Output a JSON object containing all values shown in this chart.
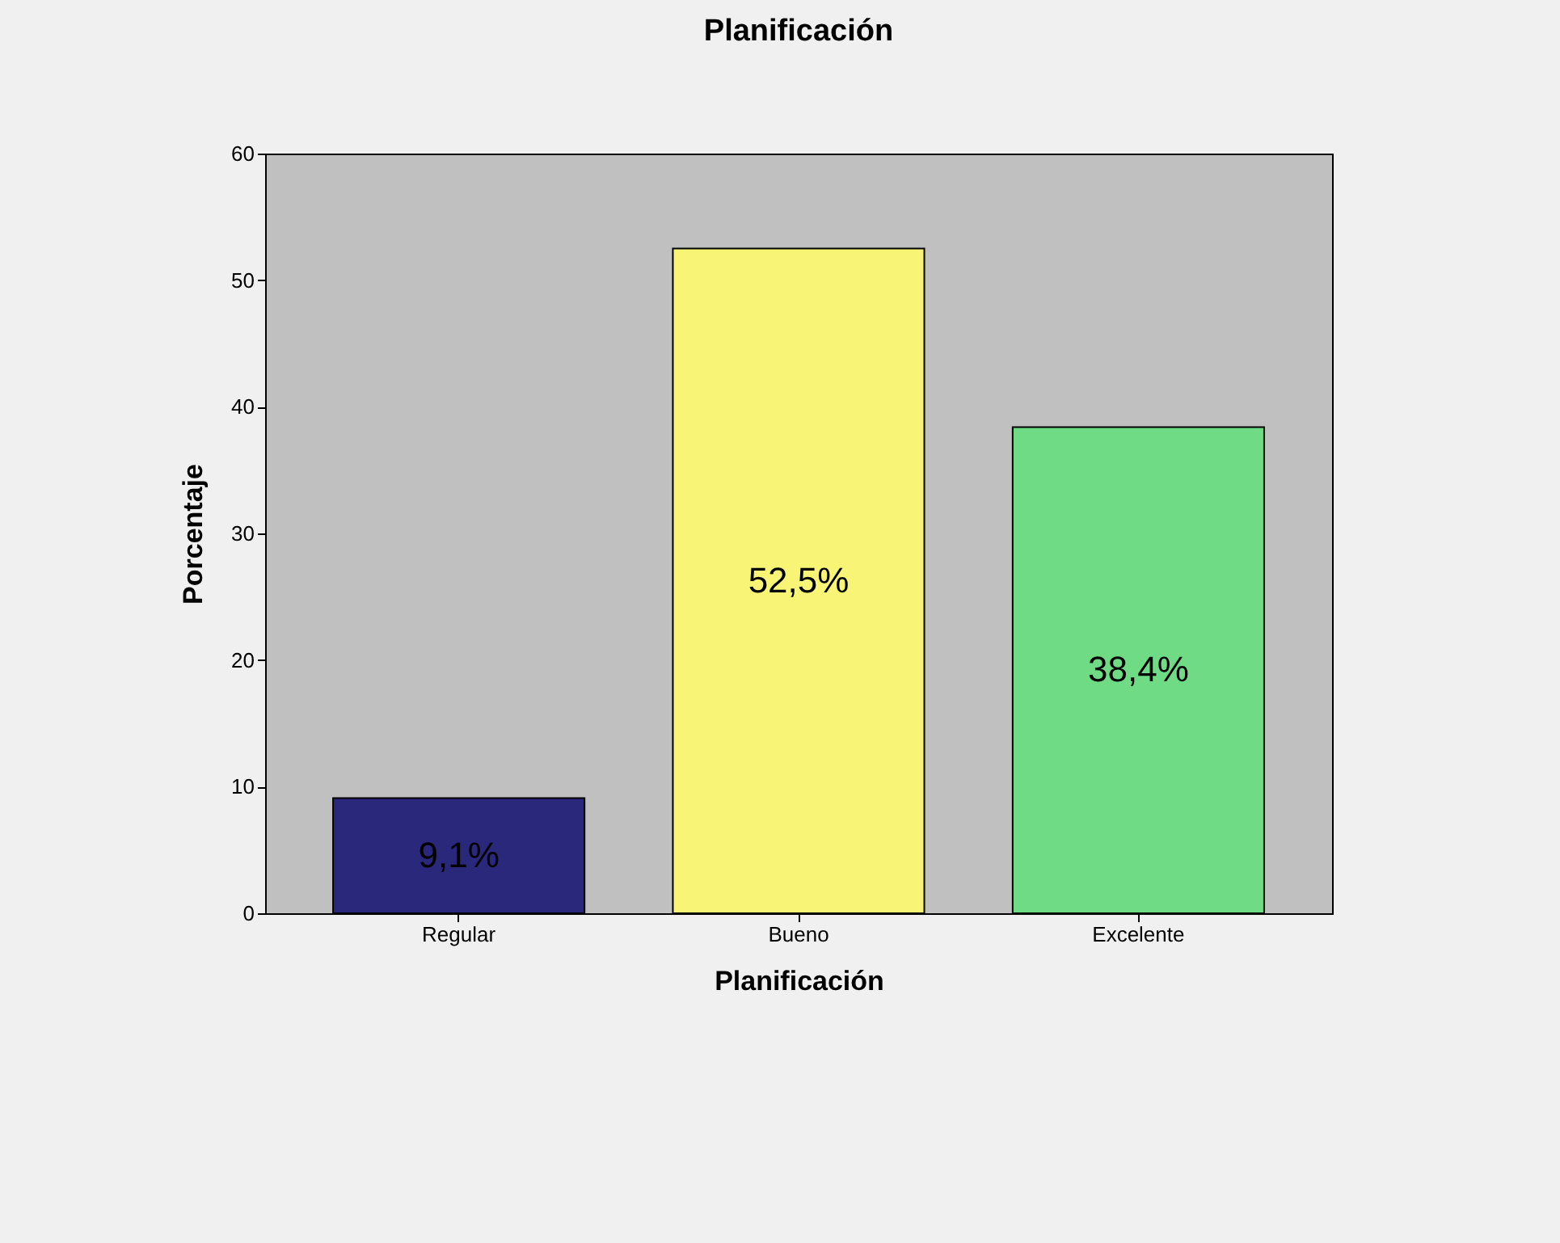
{
  "chart_data": {
    "type": "bar",
    "title": "Planificación",
    "xlabel": "Planificación",
    "ylabel": "Porcentaje",
    "categories": [
      "Regular",
      "Bueno",
      "Excelente"
    ],
    "values": [
      9.1,
      52.5,
      38.4
    ],
    "colors": [
      "#29287a",
      "#f8f576",
      "#6fdc85"
    ],
    "value_labels": [
      "9,1%",
      "52,5%",
      "38,4%"
    ],
    "ylim": [
      0,
      60
    ],
    "yticks": [
      0,
      10,
      20,
      30,
      40,
      50,
      60
    ],
    "grid": false
  }
}
